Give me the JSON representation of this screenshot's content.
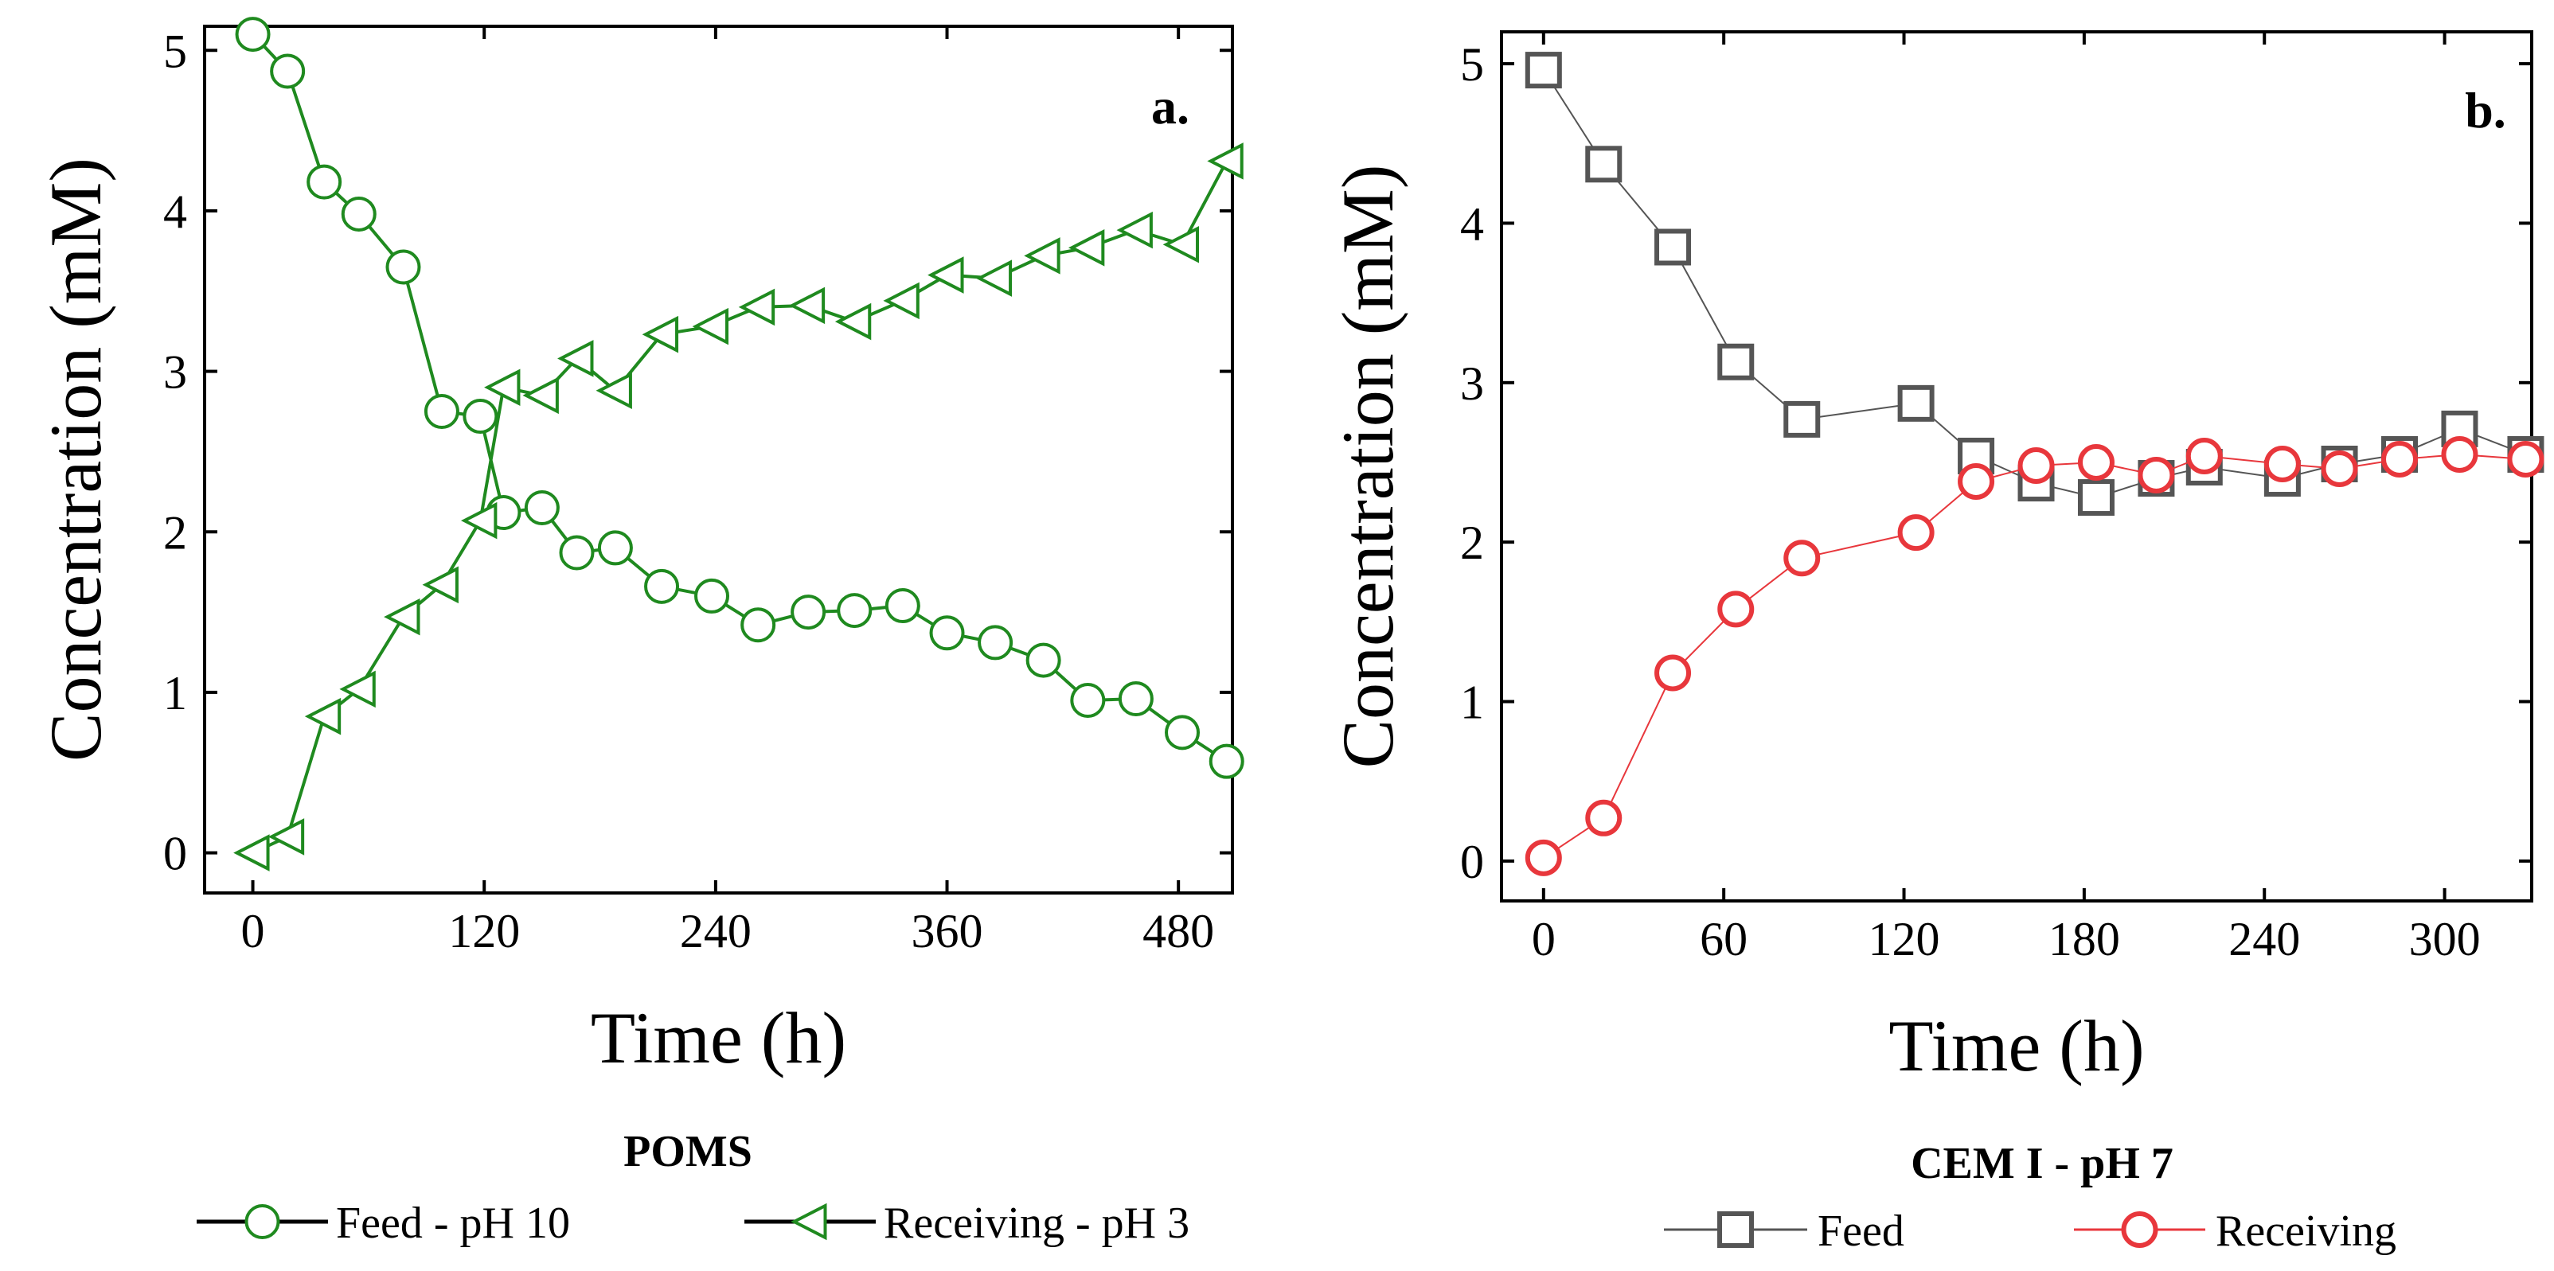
{
  "chart_data": [
    {
      "panel_id": "a",
      "panel_tag": "a.",
      "type": "line",
      "xlabel": "Time (h)",
      "ylabel": "Concentration (mM)",
      "xlim": [
        -25,
        508
      ],
      "ylim": [
        -0.25,
        5.15
      ],
      "x_ticks": [
        0,
        120,
        240,
        360,
        480
      ],
      "y_ticks": [
        0,
        1,
        2,
        3,
        4,
        5
      ],
      "legend_title": "POMS",
      "series": [
        {
          "name": "Feed - pH 10",
          "color": "#1f8a1f",
          "marker": "circle",
          "x": [
            0,
            18,
            37,
            55,
            78,
            98,
            118,
            130,
            150,
            168,
            188,
            212,
            238,
            262,
            288,
            312,
            337,
            360,
            385,
            410,
            433,
            458,
            482,
            505
          ],
          "y": [
            5.1,
            4.87,
            4.18,
            3.98,
            3.65,
            2.75,
            2.72,
            2.12,
            2.15,
            1.87,
            1.9,
            1.66,
            1.6,
            1.42,
            1.5,
            1.51,
            1.54,
            1.37,
            1.31,
            1.2,
            0.95,
            0.96,
            0.75,
            0.57
          ]
        },
        {
          "name": "Receiving - pH 3",
          "color": "#1f8a1f",
          "marker": "triangle-left",
          "x": [
            0,
            18,
            37,
            55,
            78,
            98,
            118,
            130,
            150,
            168,
            188,
            212,
            238,
            262,
            288,
            312,
            337,
            360,
            385,
            410,
            433,
            458,
            482,
            505
          ],
          "y": [
            0.0,
            0.1,
            0.85,
            1.02,
            1.47,
            1.67,
            2.07,
            2.9,
            2.85,
            3.08,
            2.88,
            3.23,
            3.28,
            3.4,
            3.41,
            3.31,
            3.44,
            3.6,
            3.58,
            3.72,
            3.77,
            3.88,
            3.79,
            4.31
          ]
        }
      ]
    },
    {
      "panel_id": "b",
      "panel_tag": "b.",
      "type": "line",
      "xlabel": "Time (h)",
      "ylabel": "Concentration (mM)",
      "xlim": [
        -14,
        329
      ],
      "ylim": [
        -0.25,
        5.2
      ],
      "x_ticks": [
        0,
        60,
        120,
        180,
        240,
        300
      ],
      "y_ticks": [
        0,
        1,
        2,
        3,
        4,
        5
      ],
      "legend_title": "CEM I - pH 7",
      "series": [
        {
          "name": "Feed",
          "color": "#555555",
          "marker": "square",
          "x": [
            0,
            20,
            43,
            64,
            86,
            124,
            144,
            164,
            184,
            204,
            220,
            246,
            265,
            285,
            305,
            327
          ],
          "y": [
            4.96,
            4.37,
            3.85,
            3.13,
            2.77,
            2.87,
            2.54,
            2.37,
            2.28,
            2.4,
            2.47,
            2.4,
            2.49,
            2.55,
            2.71,
            2.55
          ]
        },
        {
          "name": "Receiving",
          "color": "#e8373c",
          "marker": "circle",
          "x": [
            0,
            20,
            43,
            64,
            86,
            124,
            144,
            164,
            184,
            204,
            220,
            246,
            265,
            285,
            305,
            327
          ],
          "y": [
            0.02,
            0.27,
            1.18,
            1.58,
            1.9,
            2.06,
            2.38,
            2.48,
            2.5,
            2.42,
            2.54,
            2.49,
            2.46,
            2.52,
            2.55,
            2.52
          ]
        }
      ]
    }
  ]
}
